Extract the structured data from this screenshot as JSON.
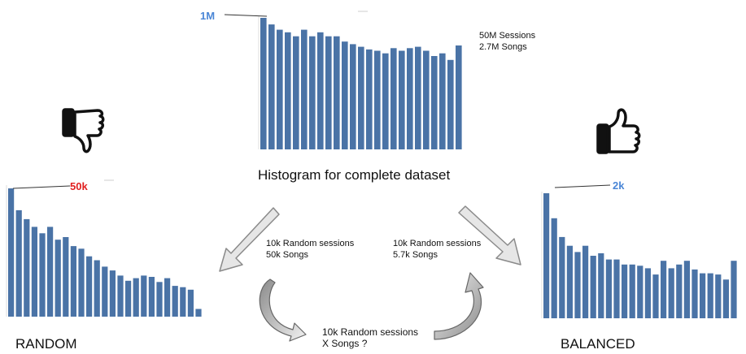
{
  "colors": {
    "bar": "#4a73a6",
    "blue_label": "#4a86d6",
    "red_label": "#e11f1f",
    "arrow_fill": "#e6e6e6",
    "arrow_stroke": "#8a8a8a"
  },
  "top": {
    "callout": "1M",
    "stats": [
      "50M Sessions",
      "2.7M Songs"
    ],
    "caption": "Histogram for complete dataset"
  },
  "left": {
    "callout": "50k",
    "label": "RANDOM",
    "icon": "thumbs-down-icon"
  },
  "right": {
    "callout": "2k",
    "label": "BALANCED",
    "icon": "thumbs-up-icon"
  },
  "flow": {
    "left_text": [
      "10k Random sessions",
      "50k Songs"
    ],
    "right_text": [
      "10k Random sessions",
      "5.7k Songs"
    ],
    "bottom_text": [
      "10k Random sessions",
      "X Songs ?"
    ]
  },
  "chart_data": [
    {
      "type": "bar",
      "name": "complete",
      "values": [
        1.0,
        0.95,
        0.91,
        0.89,
        0.86,
        0.91,
        0.86,
        0.89,
        0.86,
        0.86,
        0.82,
        0.8,
        0.78,
        0.76,
        0.75,
        0.73,
        0.77,
        0.75,
        0.77,
        0.78,
        0.75,
        0.71,
        0.73,
        0.68,
        0.79
      ]
    },
    {
      "type": "bar",
      "name": "random",
      "values": [
        1.0,
        0.83,
        0.76,
        0.7,
        0.65,
        0.7,
        0.6,
        0.62,
        0.55,
        0.53,
        0.47,
        0.44,
        0.39,
        0.36,
        0.32,
        0.28,
        0.3,
        0.32,
        0.31,
        0.27,
        0.3,
        0.24,
        0.23,
        0.21,
        0.06
      ]
    },
    {
      "type": "bar",
      "name": "balanced",
      "values": [
        1.0,
        0.8,
        0.65,
        0.58,
        0.53,
        0.58,
        0.5,
        0.52,
        0.47,
        0.47,
        0.43,
        0.43,
        0.42,
        0.4,
        0.35,
        0.46,
        0.4,
        0.43,
        0.46,
        0.39,
        0.36,
        0.36,
        0.35,
        0.31,
        0.46
      ]
    }
  ]
}
